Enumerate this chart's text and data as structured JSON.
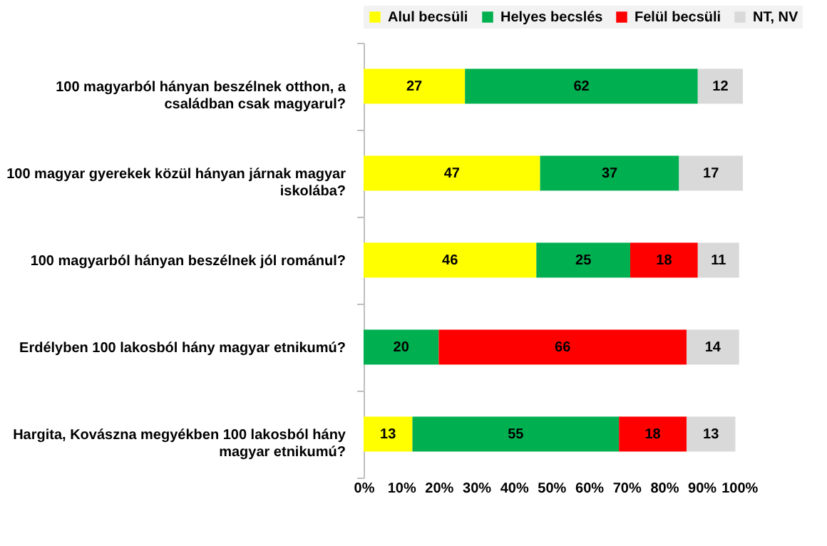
{
  "chart_data": {
    "type": "bar",
    "orientation": "horizontal",
    "stacked": true,
    "categories": [
      "100 magyarból hányan beszélnek otthon, a családban csak magyarul?",
      "100 magyar gyerekek közül hányan járnak magyar iskolába?",
      "100 magyarból hányan beszélnek jól románul?",
      "Erdélyben 100 lakosból hány magyar etnikumú?",
      "Hargita, Kovászna megyékben 100 lakosból hány magyar etnikumú?"
    ],
    "series": [
      {
        "name": "Alul becsüli",
        "color": "#ffff00",
        "values": [
          27,
          47,
          46,
          null,
          13
        ]
      },
      {
        "name": "Helyes becslés",
        "color": "#00b050",
        "values": [
          62,
          37,
          25,
          20,
          55
        ]
      },
      {
        "name": "Felül becsüli",
        "color": "#ff0000",
        "values": [
          null,
          null,
          18,
          66,
          18
        ]
      },
      {
        "name": "NT, NV",
        "color": "#d9d9d9",
        "values": [
          12,
          17,
          11,
          14,
          13
        ]
      }
    ],
    "xlim": [
      0,
      101
    ],
    "xticks": [
      {
        "value": 0,
        "label": "0%"
      },
      {
        "value": 10,
        "label": "10%"
      },
      {
        "value": 20,
        "label": "20%"
      },
      {
        "value": 30,
        "label": "30%"
      },
      {
        "value": 40,
        "label": "40%"
      },
      {
        "value": 50,
        "label": "50%"
      },
      {
        "value": 60,
        "label": "60%"
      },
      {
        "value": 70,
        "label": "70%"
      },
      {
        "value": 80,
        "label": "80%"
      },
      {
        "value": 90,
        "label": "90%"
      },
      {
        "value": 100,
        "label": "100%"
      }
    ],
    "grid": false,
    "legend": "top",
    "data_labels": true
  }
}
